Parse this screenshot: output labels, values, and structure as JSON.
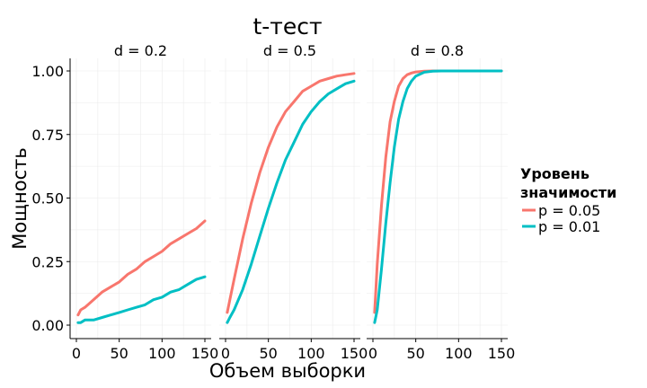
{
  "chart_data": {
    "type": "line",
    "title": "t-тест",
    "xlabel": "Объем выборки",
    "ylabel": "Мощность",
    "xlim": [
      0,
      150
    ],
    "ylim": [
      0,
      1
    ],
    "x_ticks": [
      "0",
      "50",
      "100",
      "150"
    ],
    "y_ticks": [
      "0.00",
      "0.25",
      "0.50",
      "0.75",
      "1.00"
    ],
    "grid": true,
    "legend": {
      "title_line1": "Уровень",
      "title_line2": "значимости",
      "position": "right"
    },
    "colors": {
      "p = 0.05": "#F8766D",
      "p = 0.01": "#00BFC4"
    },
    "series_names": [
      "p = 0.05",
      "p = 0.01"
    ],
    "panels": [
      {
        "label": "d = 0.2",
        "series": [
          {
            "name": "p = 0.05",
            "x": [
              2,
              5,
              10,
              20,
              30,
              40,
              50,
              60,
              70,
              80,
              90,
              100,
              110,
              120,
              130,
              140,
              150
            ],
            "y": [
              0.04,
              0.06,
              0.07,
              0.1,
              0.13,
              0.15,
              0.17,
              0.2,
              0.22,
              0.25,
              0.27,
              0.29,
              0.32,
              0.34,
              0.36,
              0.38,
              0.41
            ]
          },
          {
            "name": "p = 0.01",
            "x": [
              2,
              5,
              10,
              20,
              30,
              40,
              50,
              60,
              70,
              80,
              90,
              100,
              110,
              120,
              130,
              140,
              150
            ],
            "y": [
              0.01,
              0.01,
              0.02,
              0.02,
              0.03,
              0.04,
              0.05,
              0.06,
              0.07,
              0.08,
              0.1,
              0.11,
              0.13,
              0.14,
              0.16,
              0.18,
              0.19
            ]
          }
        ]
      },
      {
        "label": "d = 0.5",
        "series": [
          {
            "name": "p = 0.05",
            "x": [
              2,
              5,
              10,
              20,
              30,
              40,
              50,
              60,
              70,
              80,
              90,
              100,
              110,
              120,
              130,
              140,
              150
            ],
            "y": [
              0.05,
              0.1,
              0.18,
              0.34,
              0.48,
              0.6,
              0.7,
              0.78,
              0.84,
              0.88,
              0.92,
              0.94,
              0.96,
              0.97,
              0.98,
              0.985,
              0.99
            ]
          },
          {
            "name": "p = 0.01",
            "x": [
              2,
              5,
              10,
              20,
              30,
              40,
              50,
              60,
              70,
              80,
              90,
              100,
              110,
              120,
              130,
              140,
              150
            ],
            "y": [
              0.01,
              0.03,
              0.06,
              0.14,
              0.24,
              0.35,
              0.46,
              0.56,
              0.65,
              0.72,
              0.79,
              0.84,
              0.88,
              0.91,
              0.93,
              0.95,
              0.96
            ]
          }
        ]
      },
      {
        "label": "d = 0.8",
        "series": [
          {
            "name": "p = 0.05",
            "x": [
              2,
              5,
              10,
              15,
              20,
              25,
              30,
              35,
              40,
              45,
              50,
              60,
              70,
              80,
              100,
              120,
              150
            ],
            "y": [
              0.05,
              0.24,
              0.47,
              0.66,
              0.8,
              0.88,
              0.94,
              0.97,
              0.985,
              0.992,
              0.996,
              0.999,
              1.0,
              1.0,
              1.0,
              1.0,
              1.0
            ]
          },
          {
            "name": "p = 0.01",
            "x": [
              2,
              5,
              10,
              15,
              20,
              25,
              30,
              35,
              40,
              45,
              50,
              60,
              70,
              80,
              100,
              120,
              150
            ],
            "y": [
              0.01,
              0.06,
              0.22,
              0.4,
              0.56,
              0.7,
              0.81,
              0.88,
              0.93,
              0.96,
              0.98,
              0.995,
              0.999,
              1.0,
              1.0,
              1.0,
              1.0
            ]
          }
        ]
      }
    ]
  }
}
